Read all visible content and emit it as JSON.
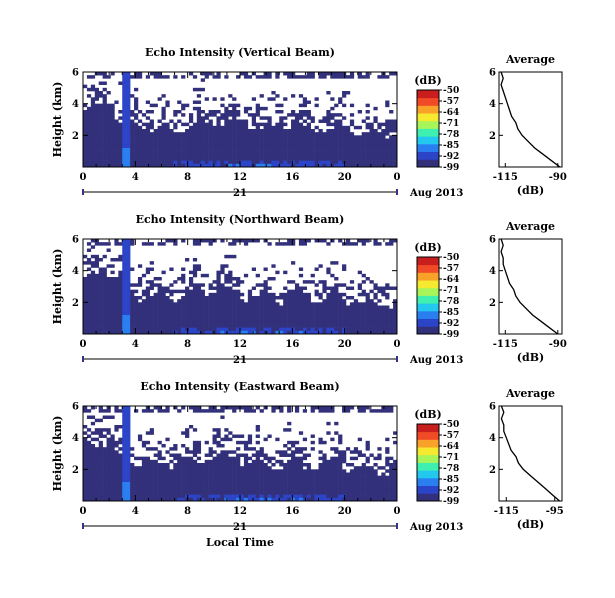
{
  "colormap": [
    "#32307a",
    "#2b44c8",
    "#2a7ff0",
    "#23c8ef",
    "#3ff0b0",
    "#a8f55a",
    "#f5ea2f",
    "#f8a22a",
    "#f14a26",
    "#c81e1e"
  ],
  "missing_color": "#ffffff",
  "chart_data": [
    {
      "type": "heatmap",
      "title": "Echo Intensity (Vertical Beam)",
      "ylabel": "Height (km)",
      "xlabel": "",
      "x_range": [
        0,
        24
      ],
      "y_range": [
        0,
        6
      ],
      "x_ticks": [
        "0",
        "4",
        "8",
        "12",
        "16",
        "20",
        "0"
      ],
      "y_ticks": [
        "2",
        "4",
        "6"
      ],
      "date_day": "21",
      "date_label": "Aug 2013",
      "colorbar": {
        "unit": "(dB)",
        "ticks": [
          "-50",
          "-57",
          "-64",
          "-71",
          "-78",
          "-85",
          "-92",
          "-99"
        ],
        "range": [
          -99,
          -50
        ]
      },
      "profile": {
        "title": "Average",
        "xlabel": "(dB)",
        "x_ticks": [
          "-115",
          "-90"
        ],
        "x_range": [
          -118,
          -88
        ],
        "y_range": [
          0,
          6
        ],
        "y_ticks": [
          "2",
          "4",
          "6"
        ],
        "x": [
          -89,
          -93,
          -97,
          -101,
          -104,
          -107,
          -109,
          -110,
          -112,
          -113,
          -114,
          -115,
          -116,
          -117,
          -116,
          -117
        ],
        "y": [
          0.0,
          0.4,
          0.8,
          1.2,
          1.6,
          2.0,
          2.4,
          2.8,
          3.2,
          3.6,
          4.0,
          4.4,
          4.8,
          5.2,
          5.6,
          6.0
        ]
      },
      "field": {
        "clear_base_km": 3.3,
        "clutter_height_km": 5.6,
        "vertical_stripe_hours": [
          3.1,
          3.6
        ],
        "surface_layer_km": 0.5
      }
    },
    {
      "type": "heatmap",
      "title": "Echo Intensity (Northward Beam)",
      "ylabel": "Height (km)",
      "xlabel": "",
      "x_range": [
        0,
        24
      ],
      "y_range": [
        0,
        6
      ],
      "x_ticks": [
        "0",
        "4",
        "8",
        "12",
        "16",
        "20",
        "0"
      ],
      "y_ticks": [
        "2",
        "4",
        "6"
      ],
      "date_day": "21",
      "date_label": "Aug 2013",
      "colorbar": {
        "unit": "(dB)",
        "ticks": [
          "-50",
          "-57",
          "-64",
          "-71",
          "-78",
          "-85",
          "-92",
          "-99"
        ],
        "range": [
          -99,
          -50
        ]
      },
      "profile": {
        "title": "Average",
        "xlabel": "(dB)",
        "x_ticks": [
          "-115",
          "-90"
        ],
        "x_range": [
          -118,
          -88
        ],
        "y_range": [
          0,
          6
        ],
        "y_ticks": [
          "2",
          "4",
          "6"
        ],
        "x": [
          -90,
          -94,
          -98,
          -102,
          -105,
          -108,
          -110,
          -111,
          -113,
          -114,
          -115,
          -116,
          -116,
          -117,
          -116,
          -117
        ],
        "y": [
          0.0,
          0.4,
          0.8,
          1.2,
          1.6,
          2.0,
          2.4,
          2.8,
          3.2,
          3.6,
          4.0,
          4.4,
          4.8,
          5.2,
          5.6,
          6.0
        ]
      },
      "field": {
        "clear_base_km": 3.1,
        "clutter_height_km": 5.6,
        "vertical_stripe_hours": [
          3.1,
          3.6
        ],
        "surface_layer_km": 0.4
      }
    },
    {
      "type": "heatmap",
      "title": "Echo Intensity (Eastward Beam)",
      "ylabel": "Height (km)",
      "xlabel": "Local Time",
      "x_range": [
        0,
        24
      ],
      "y_range": [
        0,
        6
      ],
      "x_ticks": [
        "0",
        "4",
        "8",
        "12",
        "16",
        "20",
        "0"
      ],
      "y_ticks": [
        "2",
        "4",
        "6"
      ],
      "date_day": "21",
      "date_label": "Aug 2013",
      "colorbar": {
        "unit": "(dB)",
        "ticks": [
          "-50",
          "-57",
          "-64",
          "-71",
          "-78",
          "-85",
          "-92",
          "-99"
        ],
        "range": [
          -99,
          -50
        ]
      },
      "profile": {
        "title": "Average",
        "xlabel": "(dB)",
        "x_ticks": [
          "-115",
          "-95"
        ],
        "x_range": [
          -118,
          -92
        ],
        "y_range": [
          0,
          6
        ],
        "y_ticks": [
          "2",
          "4",
          "6"
        ],
        "x": [
          -93,
          -96,
          -99,
          -102,
          -105,
          -108,
          -110,
          -111,
          -113,
          -114,
          -115,
          -116,
          -116,
          -117,
          -116,
          -117
        ],
        "y": [
          0.0,
          0.4,
          0.8,
          1.2,
          1.6,
          2.0,
          2.4,
          2.8,
          3.2,
          3.6,
          4.0,
          4.4,
          4.8,
          5.2,
          5.6,
          6.0
        ]
      },
      "field": {
        "clear_base_km": 3.2,
        "clutter_height_km": 5.6,
        "vertical_stripe_hours": [
          3.1,
          3.6
        ],
        "surface_layer_km": 0.45
      }
    }
  ]
}
